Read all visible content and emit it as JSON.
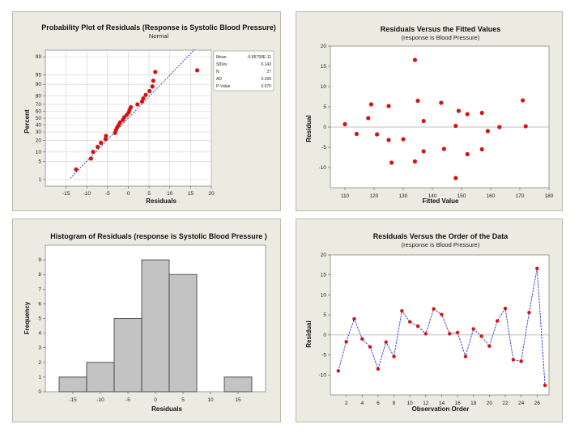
{
  "chart_data": [
    {
      "type": "scatter",
      "title": "Probability Plot of Residuals (Response is Systolic Blood Pressure)",
      "subtitle": "Normal",
      "xlabel": "Residuals",
      "ylabel": "Percent",
      "xlim": [
        -20,
        20
      ],
      "xticks": [
        "-15",
        "-10",
        "-5",
        "0",
        "5",
        "10",
        "15",
        "20"
      ],
      "xtick_values": [
        -15,
        -10,
        -5,
        0,
        5,
        10,
        15,
        20
      ],
      "yticks": [
        "1",
        "5",
        "10",
        "20",
        "30",
        "40",
        "50",
        "60",
        "70",
        "80",
        "90",
        "95",
        "99"
      ],
      "ytick_values": [
        1,
        5,
        10,
        20,
        30,
        40,
        50,
        60,
        70,
        80,
        90,
        95,
        99
      ],
      "stats": [
        {
          "label": "Mean",
          "value": "-6.85799E-11"
        },
        {
          "label": "StDev",
          "value": "6.143"
        },
        {
          "label": "N",
          "value": "27"
        },
        {
          "label": "AD",
          "value": "0.295"
        },
        {
          "label": "P-Value",
          "value": "0.570"
        }
      ],
      "fit_line": {
        "mean": 0,
        "sd": 6.143
      },
      "x": [
        -12.6,
        -9.0,
        -8.5,
        -7.4,
        -6.6,
        -5.5,
        -5.4,
        -3.2,
        -3.0,
        -2.7,
        -2.3,
        -2.0,
        -1.3,
        -1.0,
        -0.4,
        0.1,
        0.3,
        0.6,
        2.2,
        3.3,
        3.6,
        4.2,
        5.1,
        5.8,
        6.0,
        6.5,
        16.6
      ],
      "y": [
        2.6,
        6.3,
        10.1,
        13.8,
        17.5,
        21.3,
        25.0,
        28.8,
        32.5,
        36.2,
        40.0,
        43.7,
        47.4,
        51.2,
        54.9,
        58.6,
        62.4,
        66.1,
        69.9,
        73.6,
        77.3,
        81.1,
        84.8,
        88.5,
        92.2,
        96.0,
        96.5
      ]
    },
    {
      "type": "scatter",
      "title": "Residuals Versus the Fitted Values",
      "subtitle": "(response is Blood Pressure)",
      "xlabel": "Fitted Value",
      "ylabel": "Residual",
      "xlim": [
        105,
        180
      ],
      "ylim": [
        -15,
        20
      ],
      "xticks": [
        "110",
        "120",
        "130",
        "140",
        "150",
        "160",
        "170",
        "180"
      ],
      "xtick_values": [
        110,
        120,
        130,
        140,
        150,
        160,
        170,
        180
      ],
      "yticks": [
        "-10",
        "-5",
        "0",
        "5",
        "10",
        "15",
        "20"
      ],
      "ytick_values": [
        -10,
        -5,
        0,
        5,
        10,
        15,
        20
      ],
      "x": [
        110,
        114,
        118,
        119,
        121,
        125,
        125,
        126,
        130,
        134,
        134,
        135,
        137,
        137,
        143,
        144,
        148,
        148,
        149,
        152,
        152,
        157,
        157,
        159,
        163,
        171,
        172
      ],
      "y": [
        0.7,
        -1.7,
        2.2,
        5.6,
        -1.8,
        5.2,
        -3.2,
        -8.8,
        -3.0,
        -8.5,
        16.6,
        6.5,
        -6.0,
        1.5,
        6.0,
        -5.4,
        -12.6,
        0.3,
        4.0,
        3.2,
        -6.7,
        3.5,
        -5.5,
        -1.0,
        0.0,
        6.6,
        0.2
      ]
    },
    {
      "type": "bar",
      "title": "Histogram of Residuals (response is Systolic Blood Pressure )",
      "xlabel": "Residuals",
      "ylabel": "Frequency",
      "xlim": [
        -20,
        20
      ],
      "ylim": [
        0,
        10
      ],
      "xticks": [
        "-15",
        "-10",
        "-5",
        "0",
        "5",
        "10",
        "15"
      ],
      "xtick_values": [
        -15,
        -10,
        -5,
        0,
        5,
        10,
        15
      ],
      "yticks": [
        "0",
        "1",
        "2",
        "3",
        "4",
        "5",
        "6",
        "7",
        "8",
        "9"
      ],
      "ytick_values": [
        0,
        1,
        2,
        3,
        4,
        5,
        6,
        7,
        8,
        9
      ],
      "bin_width": 5,
      "bin_centers": [
        -15,
        -10,
        -5,
        0,
        5,
        10,
        15
      ],
      "values": [
        1,
        2,
        5,
        9,
        8,
        0,
        1
      ]
    },
    {
      "type": "line",
      "title": "Residuals Versus the Order of the Data",
      "subtitle": "(response is Blood Pressure)",
      "xlabel": "Observation Order",
      "ylabel": "Residual",
      "xlim": [
        0,
        27.5
      ],
      "ylim": [
        -15,
        20
      ],
      "xticks": [
        "2",
        "4",
        "6",
        "8",
        "10",
        "12",
        "14",
        "16",
        "18",
        "20",
        "22",
        "24",
        "26"
      ],
      "xtick_values": [
        2,
        4,
        6,
        8,
        10,
        12,
        14,
        16,
        18,
        20,
        22,
        24,
        26
      ],
      "yticks": [
        "-10",
        "-5",
        "0",
        "5",
        "10",
        "15",
        "20"
      ],
      "ytick_values": [
        -10,
        -5,
        0,
        5,
        10,
        15,
        20
      ],
      "x": [
        1,
        2,
        3,
        4,
        5,
        6,
        7,
        8,
        9,
        10,
        11,
        12,
        13,
        14,
        15,
        16,
        17,
        18,
        19,
        20,
        21,
        22,
        23,
        24,
        25,
        26,
        27
      ],
      "y": [
        -9.0,
        -1.7,
        4.0,
        -1.0,
        -3.0,
        -8.5,
        -1.8,
        -5.4,
        6.0,
        3.3,
        2.2,
        0.3,
        6.5,
        5.1,
        0.3,
        0.6,
        -5.4,
        1.5,
        -0.3,
        -2.8,
        3.5,
        6.6,
        -6.2,
        -6.6,
        5.6,
        16.6,
        -12.6
      ]
    }
  ]
}
